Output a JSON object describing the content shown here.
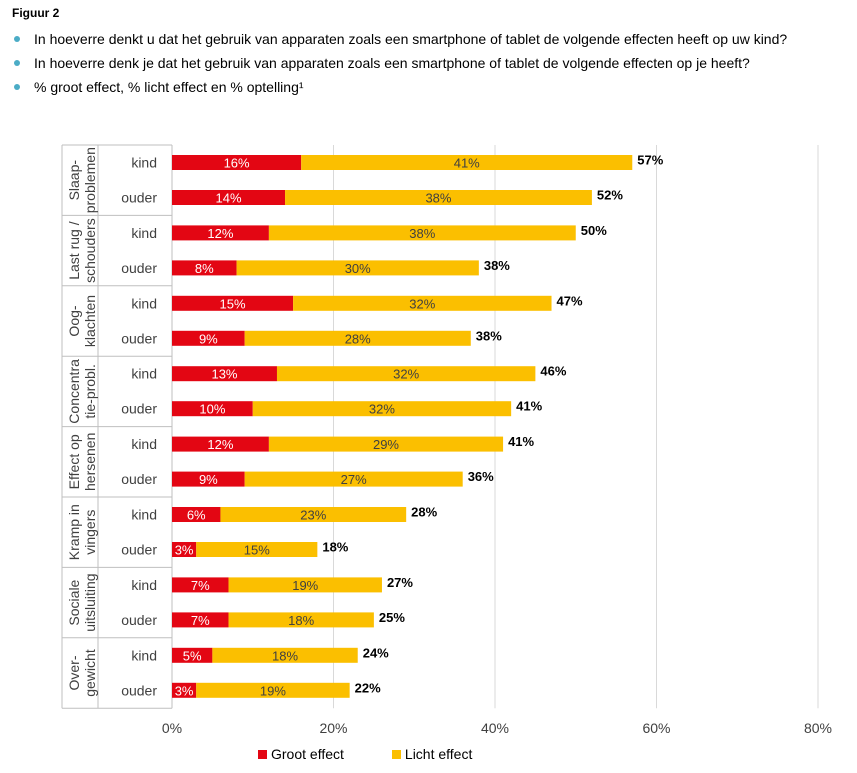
{
  "figure_label": "Figuur 2",
  "bullets": [
    "In hoeverre denkt u dat het gebruik van apparaten zoals een smartphone of tablet de volgende effecten heeft op uw kind?",
    "In hoeverre denk je dat het gebruik van apparaten zoals een smartphone of tablet de volgende effecten op je heeft?",
    "% groot effect, % licht effect en % optelling¹"
  ],
  "colors": {
    "groot": "#e30613",
    "licht": "#fbbf00",
    "bullet": "#4bacc6",
    "grid": "#d9d9d9"
  },
  "chart_data": {
    "type": "bar",
    "orientation": "horizontal",
    "stacked": true,
    "x_ticks": [
      "0%",
      "20%",
      "40%",
      "60%",
      "80%"
    ],
    "xlim": [
      0,
      80
    ],
    "groups": [
      {
        "label_lines": [
          "Slaap-",
          "problemen"
        ],
        "rows": [
          {
            "label": "kind",
            "groot": 16,
            "licht": 41,
            "total": 57
          },
          {
            "label": "ouder",
            "groot": 14,
            "licht": 38,
            "total": 52
          }
        ]
      },
      {
        "label_lines": [
          "Last rug /",
          "schouders"
        ],
        "rows": [
          {
            "label": "kind",
            "groot": 12,
            "licht": 38,
            "total": 50
          },
          {
            "label": "ouder",
            "groot": 8,
            "licht": 30,
            "total": 38
          }
        ]
      },
      {
        "label_lines": [
          "Oog-",
          "klachten"
        ],
        "rows": [
          {
            "label": "kind",
            "groot": 15,
            "licht": 32,
            "total": 47
          },
          {
            "label": "ouder",
            "groot": 9,
            "licht": 28,
            "total": 38
          }
        ]
      },
      {
        "label_lines": [
          "Concentra",
          "tie-probl."
        ],
        "rows": [
          {
            "label": "kind",
            "groot": 13,
            "licht": 32,
            "total": 46
          },
          {
            "label": "ouder",
            "groot": 10,
            "licht": 32,
            "total": 41
          }
        ]
      },
      {
        "label_lines": [
          "Effect op",
          "hersenen"
        ],
        "rows": [
          {
            "label": "kind",
            "groot": 12,
            "licht": 29,
            "total": 41
          },
          {
            "label": "ouder",
            "groot": 9,
            "licht": 27,
            "total": 36
          }
        ]
      },
      {
        "label_lines": [
          "Kramp in",
          "vingers"
        ],
        "rows": [
          {
            "label": "kind",
            "groot": 6,
            "licht": 23,
            "total": 28
          },
          {
            "label": "ouder",
            "groot": 3,
            "licht": 15,
            "total": 18
          }
        ]
      },
      {
        "label_lines": [
          "Sociale",
          "uitsluiting"
        ],
        "rows": [
          {
            "label": "kind",
            "groot": 7,
            "licht": 19,
            "total": 27
          },
          {
            "label": "ouder",
            "groot": 7,
            "licht": 18,
            "total": 25
          }
        ]
      },
      {
        "label_lines": [
          "Over-",
          "gewicht"
        ],
        "rows": [
          {
            "label": "kind",
            "groot": 5,
            "licht": 18,
            "total": 24
          },
          {
            "label": "ouder",
            "groot": 3,
            "licht": 19,
            "total": 22
          }
        ]
      }
    ],
    "legend": [
      "Groot effect",
      "Licht effect"
    ],
    "legend_position": "bottom"
  }
}
